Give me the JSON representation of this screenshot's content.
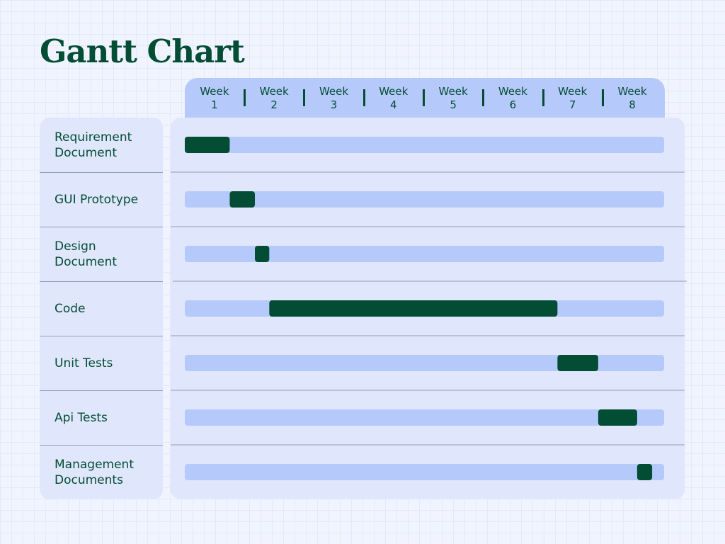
{
  "title": "Gantt Chart",
  "colors": {
    "background": "#f1f4fe",
    "panel": "#e0e6fc",
    "track": "#b6c9fb",
    "bar": "#034d35",
    "text": "#034d35",
    "divider": "#8ea1b4"
  },
  "chart_data": {
    "type": "gantt",
    "title": "Gantt Chart",
    "x_unit": "weeks",
    "xlim": [
      0.75,
      8.75
    ],
    "weeks": [
      {
        "top": "Week",
        "num": "1"
      },
      {
        "top": "Week",
        "num": "2"
      },
      {
        "top": "Week",
        "num": "3"
      },
      {
        "top": "Week",
        "num": "4"
      },
      {
        "top": "Week",
        "num": "5"
      },
      {
        "top": "Week",
        "num": "6"
      },
      {
        "top": "Week",
        "num": "7"
      },
      {
        "top": "Week",
        "num": "8"
      }
    ],
    "tasks": [
      {
        "label": "Requirement\nDocument",
        "start": 0.75,
        "end": 1.5
      },
      {
        "label": "GUI Prototype",
        "start": 1.5,
        "end": 1.92
      },
      {
        "label": "Design\nDocument",
        "start": 1.92,
        "end": 2.16
      },
      {
        "label": "Code",
        "start": 2.16,
        "end": 6.97
      },
      {
        "label": "Unit Tests",
        "start": 6.97,
        "end": 7.65
      },
      {
        "label": "Api Tests",
        "start": 7.65,
        "end": 8.3
      },
      {
        "label": "Management\nDocuments",
        "start": 8.3,
        "end": 8.55
      }
    ],
    "grid": false,
    "legend": "none"
  }
}
